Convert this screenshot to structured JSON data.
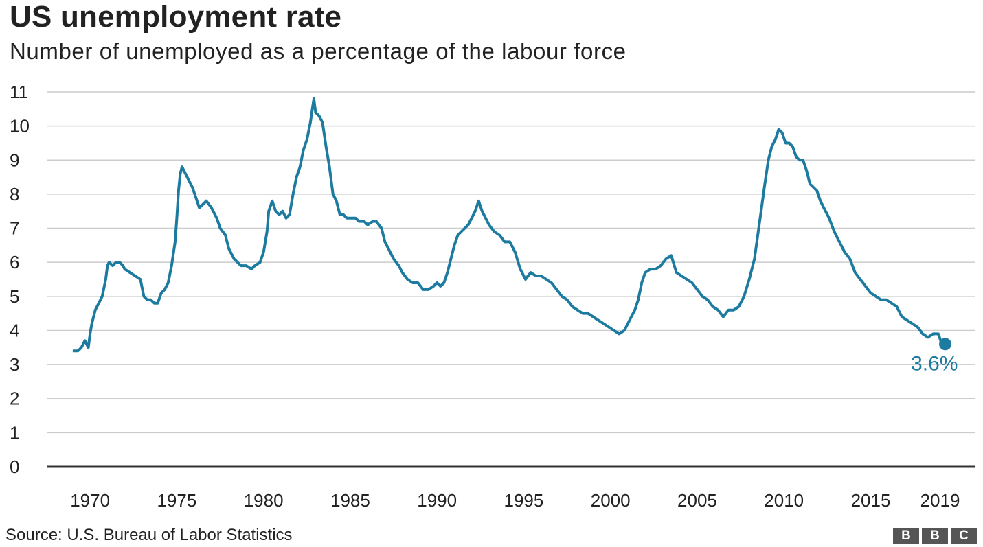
{
  "chart_data": {
    "type": "line",
    "title": "US unemployment rate",
    "subtitle": "Number of unemployed as a percentage of the labour force",
    "ylim": [
      0,
      11
    ],
    "yticks": [
      0,
      1,
      2,
      3,
      4,
      5,
      6,
      7,
      8,
      9,
      10,
      11
    ],
    "xlim": [
      1967.5,
      2021.0
    ],
    "xticks": [
      1970,
      1975,
      1980,
      1985,
      1990,
      1995,
      2000,
      2005,
      2010,
      2015,
      2019
    ],
    "xtick_labels": [
      "1970",
      "1975",
      "1980",
      "1985",
      "1990",
      "1995",
      "2000",
      "2005",
      "2010",
      "2015",
      "2019"
    ],
    "grid": true,
    "line_color": "#1e7ba0",
    "series": [
      {
        "x": [
          1969.0,
          1969.3,
          1969.5,
          1969.7,
          1969.9,
          1970.0,
          1970.1,
          1970.3,
          1970.5,
          1970.7,
          1970.9,
          1971.0,
          1971.1,
          1971.3,
          1971.5,
          1971.7,
          1971.9,
          1972.0,
          1972.3,
          1972.6,
          1972.9,
          1973.1,
          1973.3,
          1973.5,
          1973.7,
          1973.9,
          1974.1,
          1974.3,
          1974.5,
          1974.7,
          1974.9,
          1975.0,
          1975.1,
          1975.2,
          1975.3,
          1975.5,
          1975.7,
          1975.9,
          1976.1,
          1976.3,
          1976.5,
          1976.7,
          1977.0,
          1977.3,
          1977.5,
          1977.8,
          1978.0,
          1978.3,
          1978.5,
          1978.7,
          1979.0,
          1979.3,
          1979.5,
          1979.8,
          1980.0,
          1980.2,
          1980.3,
          1980.5,
          1980.7,
          1980.9,
          1981.1,
          1981.3,
          1981.5,
          1981.7,
          1981.9,
          1982.1,
          1982.3,
          1982.5,
          1982.7,
          1982.9,
          1983.0,
          1983.2,
          1983.4,
          1983.6,
          1983.8,
          1984.0,
          1984.2,
          1984.4,
          1984.6,
          1984.8,
          1985.0,
          1985.3,
          1985.5,
          1985.8,
          1986.0,
          1986.3,
          1986.5,
          1986.8,
          1987.0,
          1987.3,
          1987.5,
          1987.8,
          1988.0,
          1988.3,
          1988.6,
          1988.9,
          1989.2,
          1989.5,
          1989.8,
          1990.0,
          1990.2,
          1990.4,
          1990.6,
          1990.8,
          1991.0,
          1991.2,
          1991.4,
          1991.6,
          1991.8,
          1992.0,
          1992.2,
          1992.4,
          1992.6,
          1992.8,
          1993.0,
          1993.3,
          1993.6,
          1993.9,
          1994.2,
          1994.5,
          1994.8,
          1995.1,
          1995.4,
          1995.7,
          1996.0,
          1996.3,
          1996.6,
          1996.9,
          1997.2,
          1997.5,
          1997.8,
          1998.1,
          1998.4,
          1998.7,
          1999.0,
          1999.3,
          1999.6,
          1999.9,
          2000.2,
          2000.5,
          2000.8,
          2001.0,
          2001.2,
          2001.4,
          2001.6,
          2001.8,
          2002.0,
          2002.3,
          2002.6,
          2002.9,
          2003.2,
          2003.5,
          2003.8,
          2004.1,
          2004.4,
          2004.7,
          2005.0,
          2005.3,
          2005.6,
          2005.9,
          2006.2,
          2006.5,
          2006.8,
          2007.1,
          2007.4,
          2007.7,
          2008.0,
          2008.3,
          2008.6,
          2008.9,
          2009.1,
          2009.3,
          2009.5,
          2009.7,
          2009.9,
          2010.1,
          2010.3,
          2010.5,
          2010.7,
          2010.9,
          2011.1,
          2011.3,
          2011.5,
          2011.7,
          2011.9,
          2012.1,
          2012.3,
          2012.6,
          2012.9,
          2013.2,
          2013.5,
          2013.8,
          2014.1,
          2014.4,
          2014.7,
          2015.0,
          2015.3,
          2015.6,
          2015.9,
          2016.2,
          2016.5,
          2016.8,
          2017.1,
          2017.4,
          2017.7,
          2018.0,
          2018.3,
          2018.6,
          2018.9,
          2019.1,
          2019.3
        ],
        "y": [
          3.4,
          3.4,
          3.5,
          3.7,
          3.5,
          3.9,
          4.2,
          4.6,
          4.8,
          5.0,
          5.5,
          5.9,
          6.0,
          5.9,
          6.0,
          6.0,
          5.9,
          5.8,
          5.7,
          5.6,
          5.5,
          5.0,
          4.9,
          4.9,
          4.8,
          4.8,
          5.1,
          5.2,
          5.4,
          5.9,
          6.6,
          7.3,
          8.1,
          8.6,
          8.8,
          8.6,
          8.4,
          8.2,
          7.9,
          7.6,
          7.7,
          7.8,
          7.6,
          7.3,
          7.0,
          6.8,
          6.4,
          6.1,
          6.0,
          5.9,
          5.9,
          5.8,
          5.9,
          6.0,
          6.3,
          6.9,
          7.5,
          7.8,
          7.5,
          7.4,
          7.5,
          7.3,
          7.4,
          8.0,
          8.5,
          8.8,
          9.3,
          9.6,
          10.1,
          10.8,
          10.4,
          10.3,
          10.1,
          9.4,
          8.8,
          8.0,
          7.8,
          7.4,
          7.4,
          7.3,
          7.3,
          7.3,
          7.2,
          7.2,
          7.1,
          7.2,
          7.2,
          7.0,
          6.6,
          6.3,
          6.1,
          5.9,
          5.7,
          5.5,
          5.4,
          5.4,
          5.2,
          5.2,
          5.3,
          5.4,
          5.3,
          5.4,
          5.7,
          6.1,
          6.5,
          6.8,
          6.9,
          7.0,
          7.1,
          7.3,
          7.5,
          7.8,
          7.5,
          7.3,
          7.1,
          6.9,
          6.8,
          6.6,
          6.6,
          6.3,
          5.8,
          5.5,
          5.7,
          5.6,
          5.6,
          5.5,
          5.4,
          5.2,
          5.0,
          4.9,
          4.7,
          4.6,
          4.5,
          4.5,
          4.4,
          4.3,
          4.2,
          4.1,
          4.0,
          3.9,
          4.0,
          4.2,
          4.4,
          4.6,
          4.9,
          5.4,
          5.7,
          5.8,
          5.8,
          5.9,
          6.1,
          6.2,
          5.7,
          5.6,
          5.5,
          5.4,
          5.2,
          5.0,
          4.9,
          4.7,
          4.6,
          4.4,
          4.6,
          4.6,
          4.7,
          5.0,
          5.5,
          6.1,
          7.2,
          8.3,
          9.0,
          9.4,
          9.6,
          9.9,
          9.8,
          9.5,
          9.5,
          9.4,
          9.1,
          9.0,
          9.0,
          8.7,
          8.3,
          8.2,
          8.1,
          7.8,
          7.6,
          7.3,
          6.9,
          6.6,
          6.3,
          6.1,
          5.7,
          5.5,
          5.3,
          5.1,
          5.0,
          4.9,
          4.9,
          4.8,
          4.7,
          4.4,
          4.3,
          4.2,
          4.1,
          3.9,
          3.8,
          3.9,
          3.9,
          3.6,
          3.6
        ]
      }
    ],
    "annotation": {
      "label": "3.6%",
      "x": 2019.3,
      "y": 3.6
    }
  },
  "footer": {
    "source": "Source: U.S. Bureau of Labor Statistics",
    "logo_letters": [
      "B",
      "B",
      "C"
    ]
  }
}
